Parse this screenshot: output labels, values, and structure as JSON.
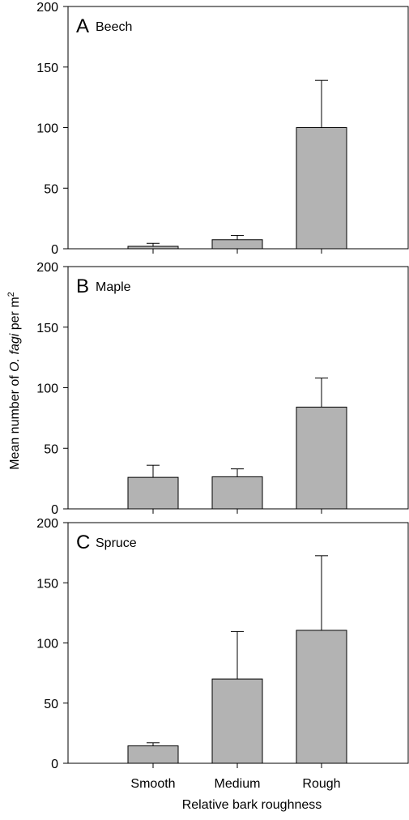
{
  "figure": {
    "ylabel_prefix": "Mean number of ",
    "ylabel_species": "O. fagi",
    "ylabel_suffix": " per m",
    "ylabel_superscript": "2",
    "xlabel": "Relative bark roughness",
    "categories": [
      "Smooth",
      "Medium",
      "Rough"
    ],
    "bar_color": "#b3b3b3"
  },
  "chart_data": [
    {
      "type": "bar",
      "panel_letter": "A",
      "panel_title": "Beech",
      "categories": [
        "Smooth",
        "Medium",
        "Rough"
      ],
      "values": [
        2,
        7.5,
        100
      ],
      "error_upper": [
        4.5,
        11,
        139
      ],
      "ylim": [
        0,
        200
      ],
      "yticks": [
        0,
        50,
        100,
        150,
        200
      ],
      "xlabel": "Relative bark roughness",
      "ylabel": "Mean number of O. fagi per m2"
    },
    {
      "type": "bar",
      "panel_letter": "B",
      "panel_title": "Maple",
      "categories": [
        "Smooth",
        "Medium",
        "Rough"
      ],
      "values": [
        26,
        26.5,
        84
      ],
      "error_upper": [
        36,
        33,
        108
      ],
      "ylim": [
        0,
        200
      ],
      "yticks": [
        0,
        50,
        100,
        150,
        200
      ],
      "xlabel": "Relative bark roughness",
      "ylabel": "Mean number of O. fagi per m2"
    },
    {
      "type": "bar",
      "panel_letter": "C",
      "panel_title": "Spruce",
      "categories": [
        "Smooth",
        "Medium",
        "Rough"
      ],
      "values": [
        14.5,
        70,
        110.5
      ],
      "error_upper": [
        17,
        109.5,
        172.5
      ],
      "ylim": [
        0,
        200
      ],
      "yticks": [
        0,
        50,
        100,
        150,
        200
      ],
      "xlabel": "Relative bark roughness",
      "ylabel": "Mean number of O. fagi per m2"
    }
  ]
}
